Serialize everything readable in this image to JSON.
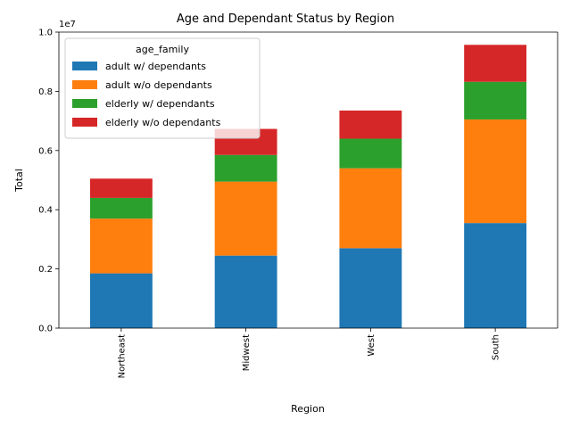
{
  "chart_data": {
    "type": "bar",
    "stacked": true,
    "title": "Age and Dependant Status by Region",
    "xlabel": "Region",
    "ylabel": "Total",
    "y_offset_text": "1e7",
    "categories": [
      "Northeast",
      "Midwest",
      "West",
      "South"
    ],
    "ylim": [
      0,
      10000000
    ],
    "yticks": [
      0,
      2000000,
      4000000,
      6000000,
      8000000,
      10000000
    ],
    "ytick_labels": [
      "0.0",
      "0.2",
      "0.4",
      "0.6",
      "0.8",
      "1.0"
    ],
    "legend": {
      "title": "age_family",
      "position": "top-left"
    },
    "series": [
      {
        "name": "adult w/ dependants",
        "color": "#1f77b4",
        "values": [
          1850000,
          2450000,
          2700000,
          3550000
        ]
      },
      {
        "name": "adult w/o dependants",
        "color": "#ff7f0e",
        "values": [
          1850000,
          2500000,
          2700000,
          3500000
        ]
      },
      {
        "name": "elderly w/ dependants",
        "color": "#2ca02c",
        "values": [
          700000,
          900000,
          1000000,
          1270000
        ]
      },
      {
        "name": "elderly w/o dependants",
        "color": "#d62728",
        "values": [
          650000,
          880000,
          950000,
          1250000
        ]
      }
    ],
    "grid": false
  }
}
